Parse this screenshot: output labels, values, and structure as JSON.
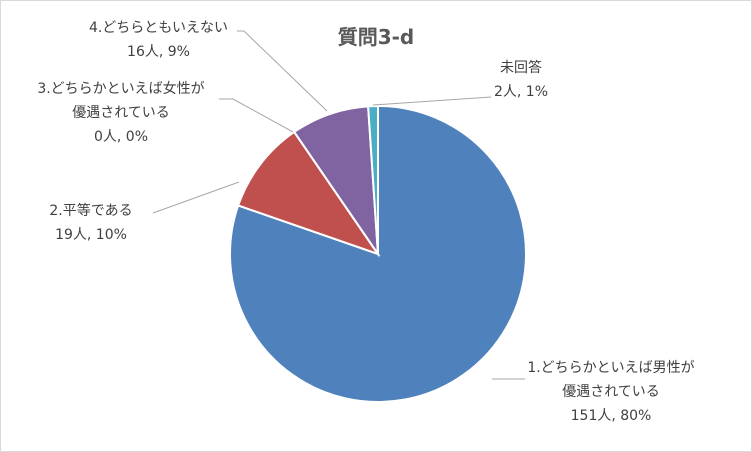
{
  "chart_data": {
    "type": "pie",
    "title": "質問3-d",
    "categories": [
      "1.どちらかといえば男性が\n優遇されている",
      "2.平等である",
      "3.どちらかといえば女性が\n優遇されている",
      "4.どちらともいえない",
      "未回答"
    ],
    "values": [
      151,
      19,
      0,
      16,
      2
    ],
    "value_labels": [
      "151人, 80%",
      "19人, 10%",
      "0人, 0%",
      "16人, 9%",
      "2人, 1%"
    ],
    "colors": [
      "#4f81bd",
      "#c0504d",
      "#9bbb59",
      "#8064a2",
      "#4bacc6"
    ]
  }
}
